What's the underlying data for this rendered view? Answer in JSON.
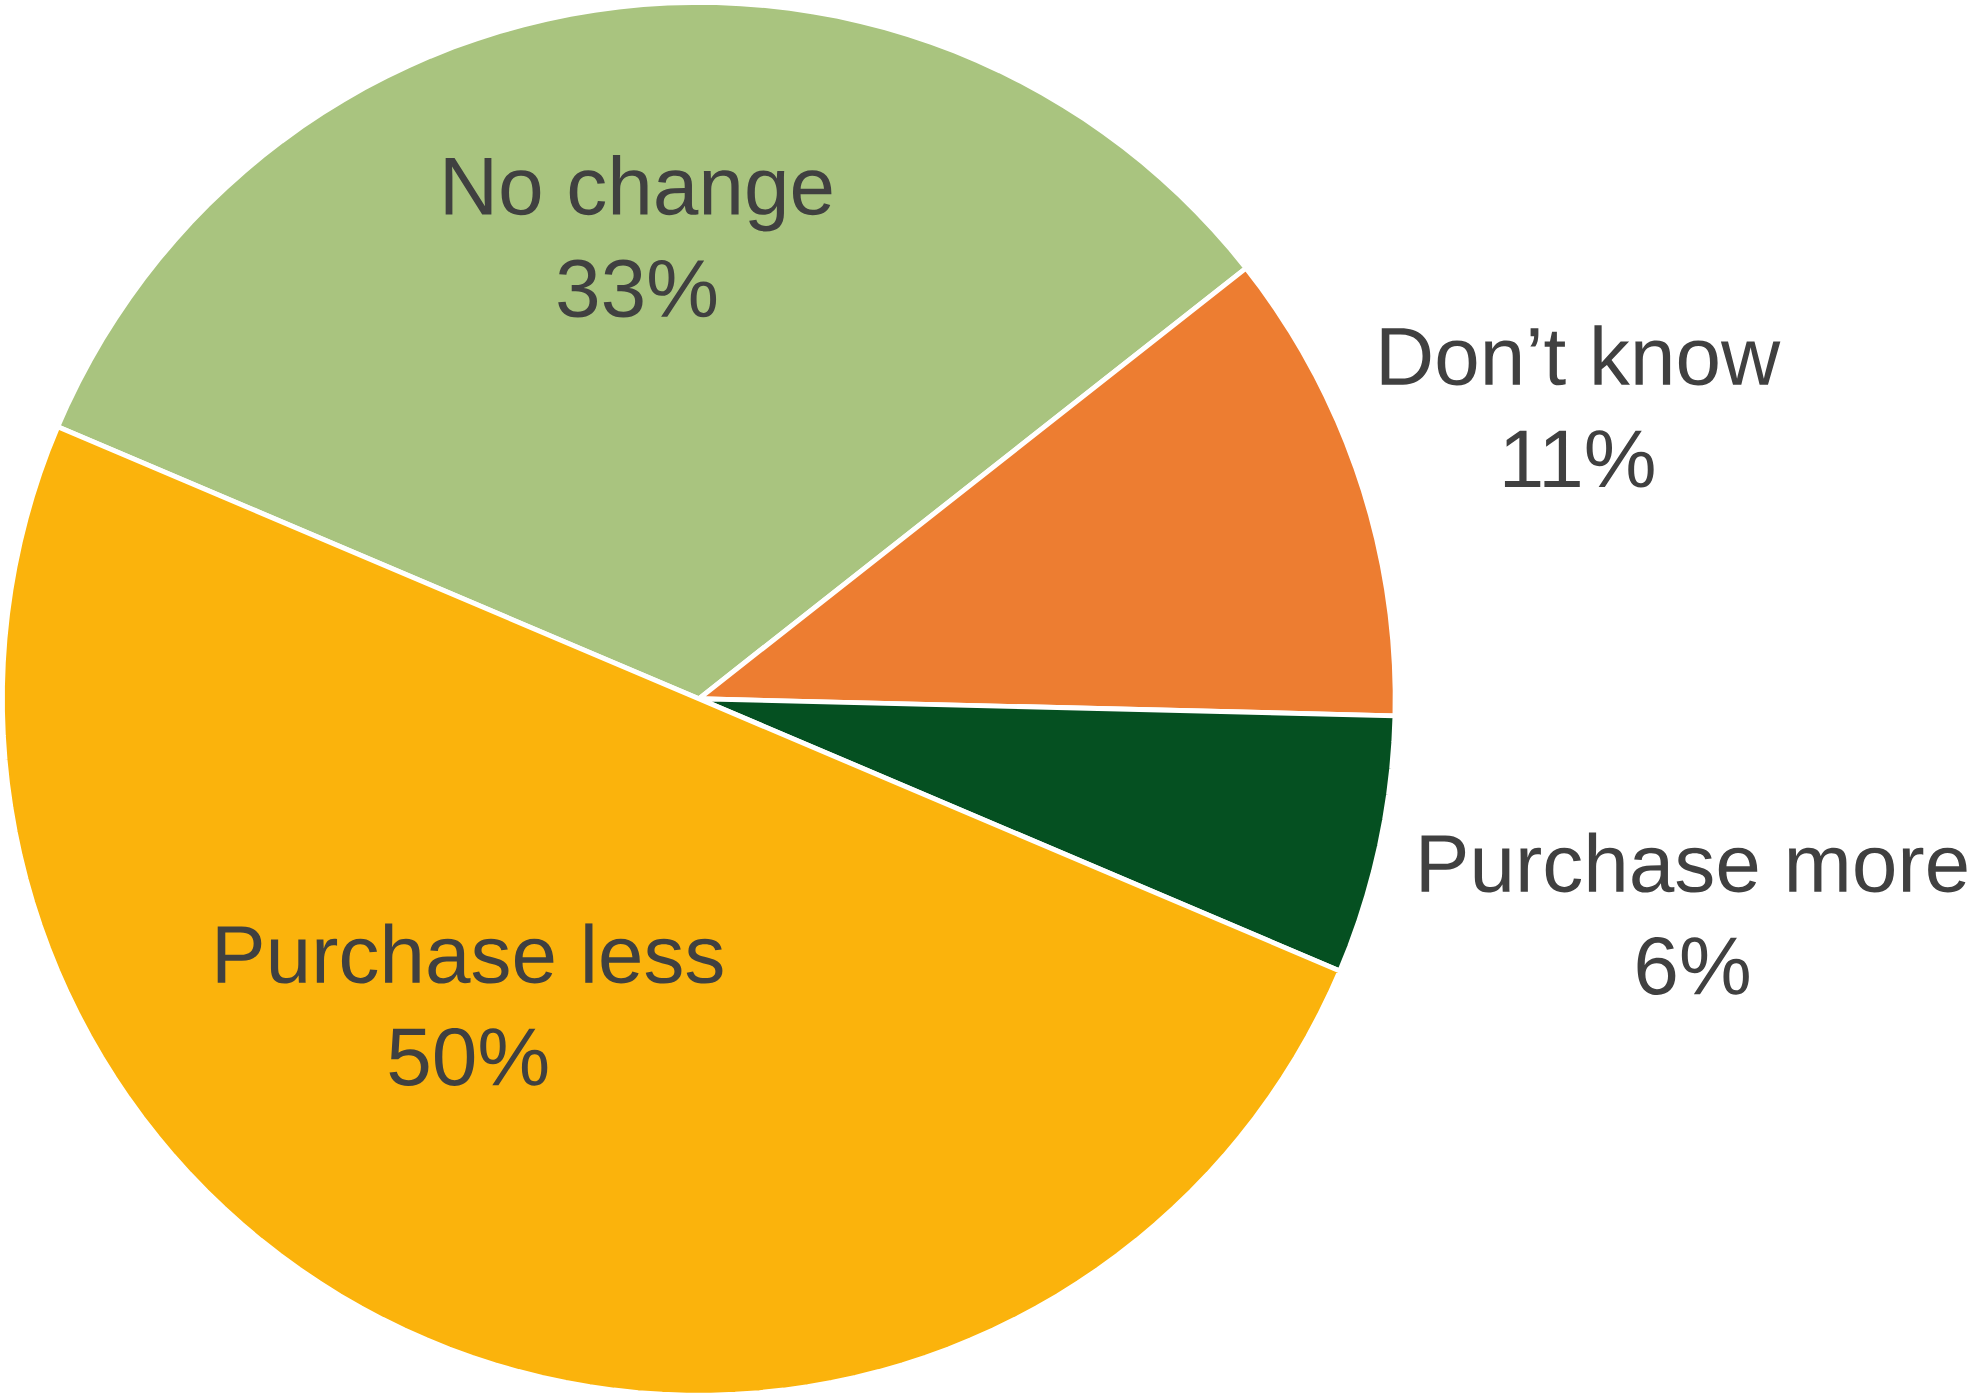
{
  "chart_data": {
    "type": "pie",
    "categories": [
      "No change",
      "Don’t know",
      "Purchase more",
      "Purchase less"
    ],
    "values": [
      33,
      11,
      6,
      50
    ],
    "colors": [
      "#a9c47f",
      "#ed7d31",
      "#055021",
      "#fbb30c"
    ],
    "value_labels": [
      "33%",
      "11%",
      "6%",
      "50%"
    ]
  }
}
